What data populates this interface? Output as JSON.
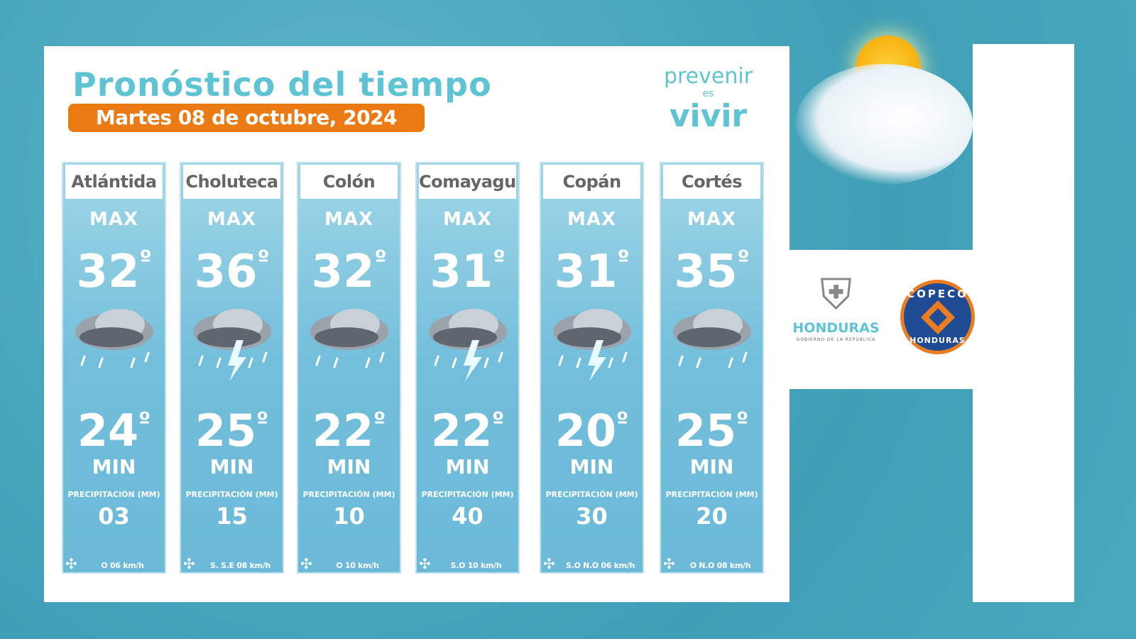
{
  "title": "Pronóstico del tiempo",
  "date": "Martes 08 de octubre, 2024",
  "slogan": {
    "line1": "prevenir",
    "line2": "es",
    "line3": "vivir"
  },
  "labels": {
    "max": "MAX",
    "min": "MIN",
    "precip": "PRECIPITACIÓN (MM)",
    "degree": "º"
  },
  "regions": [
    {
      "name": "Atlántida",
      "max": "32",
      "min": "24",
      "precip": "03",
      "wind": "O  06 km/h",
      "weather_icon": "rain-cloud"
    },
    {
      "name": "Choluteca",
      "max": "36",
      "min": "25",
      "precip": "15",
      "wind": "S. S.E 08 km/h",
      "weather_icon": "thunderstorm-cloud"
    },
    {
      "name": "Colón",
      "max": "32",
      "min": "22",
      "precip": "10",
      "wind": "O  10 km/h",
      "weather_icon": "rain-cloud"
    },
    {
      "name": "Comayagua",
      "max": "31",
      "min": "22",
      "precip": "40",
      "wind": "S.O 10 km/h",
      "weather_icon": "thunderstorm-cloud"
    },
    {
      "name": "Copán",
      "max": "31",
      "min": "20",
      "precip": "30",
      "wind": "S.O  N.O 06 km/h",
      "weather_icon": "thunderstorm-cloud"
    },
    {
      "name": "Cortés",
      "max": "35",
      "min": "25",
      "precip": "20",
      "wind": "O  N.O 08 km/h",
      "weather_icon": "rain-cloud"
    }
  ],
  "logos": {
    "honduras": "HONDURAS",
    "honduras_sub": "GOBIERNO DE LA REPÚBLICA",
    "copeco_top": "COPECO",
    "copeco_bottom": "HONDURAS"
  },
  "colors": {
    "accent": "#5ec4d4",
    "orange": "#ec7a12",
    "background": "#4aa8be"
  }
}
